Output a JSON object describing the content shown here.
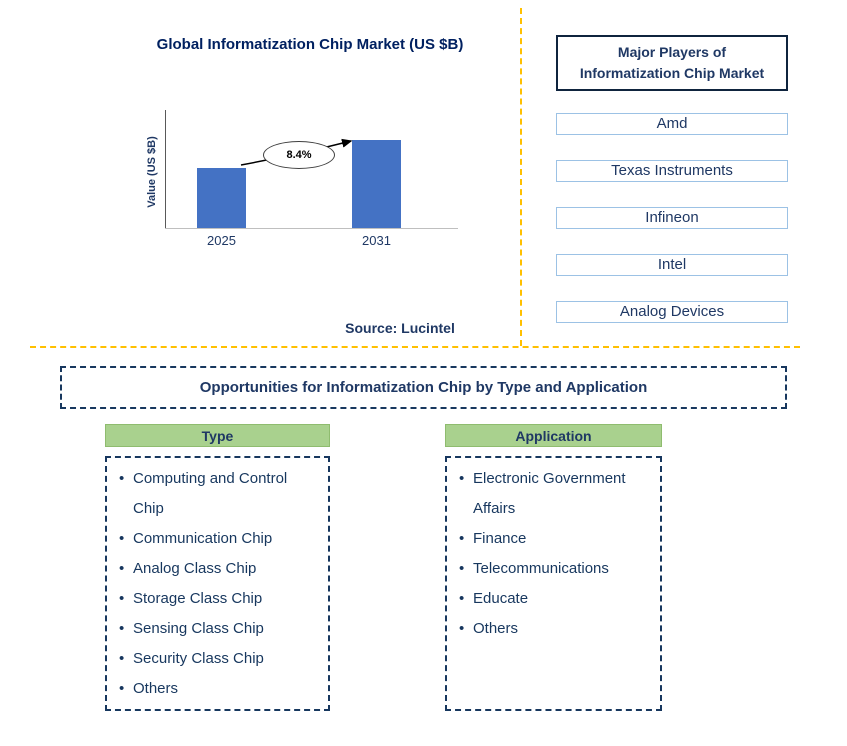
{
  "colors": {
    "navy_text": "#1F3864",
    "title_navy": "#002060",
    "bar_blue": "#4472C4",
    "green_header": "#A9D18E",
    "orange_divider": "#FFC000",
    "player_box_border": "#9CC2E5"
  },
  "chart_data": {
    "type": "bar",
    "title": "Global Informatization Chip Market (US $B)",
    "xlabel": "",
    "ylabel": "Value (US $B)",
    "categories": [
      "2025",
      "2031"
    ],
    "values": [
      0.68,
      1.0
    ],
    "ylim": [
      0,
      1.0
    ],
    "grid": false,
    "legend": false,
    "bar_color": "#4472C4",
    "annotation": "8.4%",
    "source": "Source: Lucintel"
  },
  "players": {
    "title": "Major Players of Informatization Chip Market",
    "items": [
      "Amd",
      "Texas Instruments",
      "Infineon",
      "Intel",
      "Analog Devices"
    ]
  },
  "opportunities": {
    "title": "Opportunities for Informatization Chip by Type and Application",
    "columns": [
      {
        "header": "Type",
        "items": [
          "Computing and Control Chip",
          "Communication Chip",
          "Analog Class Chip",
          "Storage Class Chip",
          "Sensing Class Chip",
          "Security Class Chip",
          "Others"
        ]
      },
      {
        "header": "Application",
        "items": [
          "Electronic Government Affairs",
          "Finance",
          "Telecommunications",
          "Educate",
          "Others"
        ]
      }
    ]
  }
}
